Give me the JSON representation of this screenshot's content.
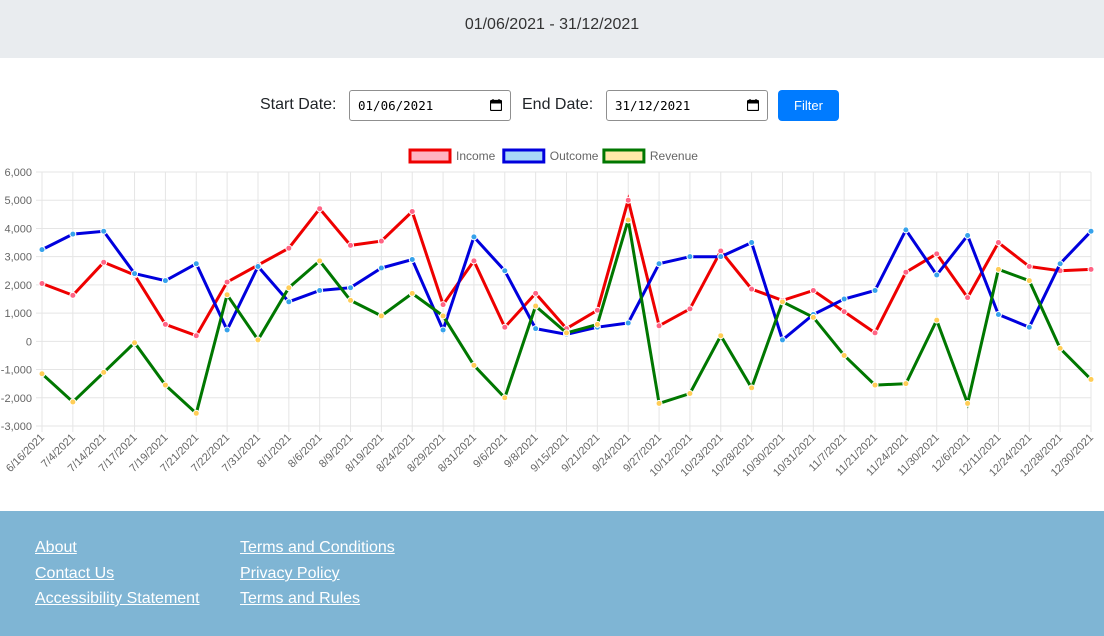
{
  "header": {
    "date_range": "01/06/2021 - 31/12/2021"
  },
  "filter": {
    "start_label": "Start Date:",
    "start_value": "01/06/2021",
    "end_label": "End Date:",
    "end_value": "31/12/2021",
    "button_label": "Filter",
    "button_color": "#007bff"
  },
  "chart_data": {
    "type": "line",
    "legend_position": "top-center",
    "grid": true,
    "ylim": [
      -3000,
      6000
    ],
    "yticks": [
      6000,
      5000,
      4000,
      3000,
      2000,
      1000,
      0,
      -1000,
      -2000,
      -3000
    ],
    "ytick_labels": [
      "6,000",
      "5,000",
      "4,000",
      "3,000",
      "2,000",
      "1,000",
      "0",
      "-1,000",
      "-2,000",
      "-3,000"
    ],
    "categories": [
      "6/16/2021",
      "7/4/2021",
      "7/14/2021",
      "7/17/2021",
      "7/19/2021",
      "7/21/2021",
      "7/22/2021",
      "7/31/2021",
      "8/1/2021",
      "8/6/2021",
      "8/9/2021",
      "8/19/2021",
      "8/24/2021",
      "8/29/2021",
      "8/31/2021",
      "9/6/2021",
      "9/8/2021",
      "9/15/2021",
      "9/21/2021",
      "9/24/2021",
      "9/27/2021",
      "10/12/2021",
      "10/23/2021",
      "10/28/2021",
      "10/30/2021",
      "10/31/2021",
      "11/7/2021",
      "11/21/2021",
      "11/24/2021",
      "11/30/2021",
      "12/6/2021",
      "12/11/2021",
      "12/24/2021",
      "12/28/2021",
      "12/30/2021"
    ],
    "series": [
      {
        "name": "Income",
        "color": "#ee0000",
        "fill": "#ffb3c1",
        "point": "#ff6384",
        "values": [
          2050,
          1630,
          2800,
          2350,
          600,
          200,
          2100,
          2700,
          3300,
          4700,
          3400,
          3550,
          4600,
          1300,
          2850,
          500,
          1700,
          450,
          1100,
          5000,
          550,
          1150,
          3200,
          1850,
          1450,
          1800,
          1050,
          300,
          2450,
          3100,
          1550,
          3500,
          2650,
          2500,
          2550
        ]
      },
      {
        "name": "Outcome",
        "color": "#0000dd",
        "fill": "#a8d8f8",
        "point": "#36a2eb",
        "values": [
          3250,
          3800,
          3900,
          2400,
          2150,
          2750,
          400,
          2650,
          1400,
          1800,
          1900,
          2600,
          2900,
          400,
          3700,
          2500,
          450,
          250,
          500,
          650,
          2750,
          3000,
          3000,
          3500,
          50,
          950,
          1500,
          1800,
          3950,
          2350,
          3750,
          950,
          500,
          2750,
          3900
        ]
      },
      {
        "name": "Revenue",
        "color": "#007700",
        "fill": "#ffe9a8",
        "point": "#ffcd56",
        "values": [
          -1150,
          -2150,
          -1100,
          -50,
          -1550,
          -2550,
          1650,
          50,
          1900,
          2850,
          1450,
          900,
          1700,
          900,
          -850,
          -2000,
          1250,
          300,
          600,
          4300,
          -2200,
          -1850,
          200,
          -1650,
          1400,
          850,
          -500,
          -1550,
          -1500,
          750,
          -2200,
          2550,
          2150,
          -250,
          -1350
        ]
      }
    ]
  },
  "footer": {
    "col1": [
      "About",
      "Contact Us",
      "Accessibility Statement"
    ],
    "col2": [
      "Terms and Conditions",
      "Privacy Policy",
      "Terms and Rules"
    ]
  }
}
